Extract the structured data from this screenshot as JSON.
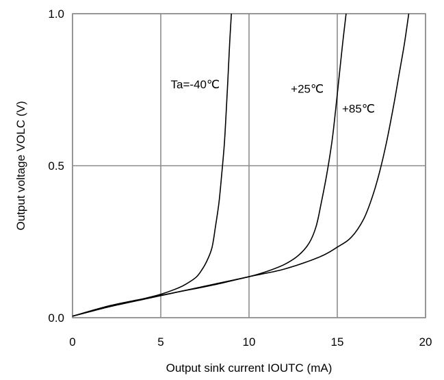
{
  "chart_data": {
    "type": "line",
    "xlabel": "Output sink current IOUTC (mA)",
    "ylabel": "Output voltage VOLC (V)",
    "xlim": [
      0,
      20
    ],
    "ylim": [
      0,
      1.0
    ],
    "xticks": [
      0,
      5,
      10,
      15,
      20
    ],
    "yticks": [
      0.0,
      0.5,
      1.0
    ],
    "xtick_labels": [
      "0",
      "5",
      "10",
      "15",
      "20"
    ],
    "ytick_labels": [
      "0.0",
      "0.5",
      "1.0"
    ],
    "grid": true,
    "series": [
      {
        "name": "Ta=-40℃",
        "x": [
          0,
          1,
          2,
          3,
          4,
          5,
          6,
          6.5,
          7,
          7.3,
          7.6,
          7.9,
          8.1,
          8.3,
          8.45,
          8.6,
          8.7,
          8.8,
          8.9,
          9.0
        ],
        "y": [
          0.005,
          0.02,
          0.035,
          0.048,
          0.062,
          0.077,
          0.098,
          0.113,
          0.133,
          0.155,
          0.185,
          0.23,
          0.3,
          0.38,
          0.47,
          0.57,
          0.67,
          0.78,
          0.9,
          1.0
        ]
      },
      {
        "name": "+25℃",
        "x": [
          0,
          2,
          4,
          6,
          8,
          10,
          11,
          12,
          12.8,
          13.4,
          13.8,
          14.1,
          14.4,
          14.7,
          14.9,
          15.1,
          15.3,
          15.5
        ],
        "y": [
          0.005,
          0.035,
          0.06,
          0.085,
          0.11,
          0.135,
          0.152,
          0.175,
          0.205,
          0.245,
          0.3,
          0.38,
          0.47,
          0.58,
          0.68,
          0.79,
          0.9,
          1.0
        ]
      },
      {
        "name": "+85℃",
        "x": [
          0,
          2,
          4,
          6,
          8,
          10,
          12,
          14,
          15,
          15.8,
          16.5,
          17,
          17.4,
          17.8,
          18.2,
          18.5,
          18.8,
          19.05
        ],
        "y": [
          0.005,
          0.038,
          0.062,
          0.085,
          0.108,
          0.135,
          0.16,
          0.2,
          0.232,
          0.265,
          0.325,
          0.4,
          0.48,
          0.58,
          0.7,
          0.8,
          0.9,
          1.0
        ]
      }
    ],
    "annotations": [
      {
        "text": "Ta=-40℃",
        "series": 0,
        "x": 6.95,
        "y": 0.755
      },
      {
        "text": "+25℃",
        "series": 1,
        "x": 13.3,
        "y": 0.74
      },
      {
        "text": "+85℃",
        "series": 2,
        "x": 16.2,
        "y": 0.675
      }
    ]
  }
}
